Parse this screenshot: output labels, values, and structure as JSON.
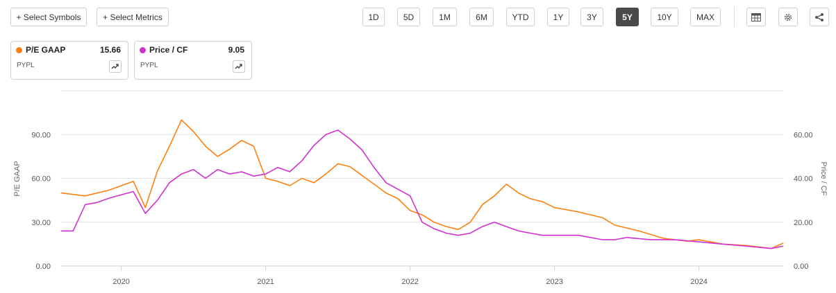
{
  "toolbar": {
    "select_symbols": "+ Select Symbols",
    "select_metrics": "+ Select Metrics",
    "ranges": [
      "1D",
      "5D",
      "1M",
      "6M",
      "YTD",
      "1Y",
      "3Y",
      "5Y",
      "10Y",
      "MAX"
    ],
    "selected_range": "5Y",
    "icons": [
      "table-icon",
      "gear-icon",
      "share-icon"
    ]
  },
  "cards": [
    {
      "metric": "P/E GAAP",
      "value": "15.66",
      "ticker": "PYPL",
      "color": "#ff7f0e"
    },
    {
      "metric": "Price / CF",
      "value": "9.05",
      "ticker": "PYPL",
      "color": "#d12fd1"
    }
  ],
  "chart_data": {
    "type": "line",
    "xlabel": "",
    "x_ticks": [
      "2020",
      "2021",
      "2022",
      "2023",
      "2024"
    ],
    "xlim": [
      "2019-08",
      "2024-08"
    ],
    "ylabel_left": "P/E GAAP",
    "ylabel_right": "Price / CF",
    "y_left_ticks": [
      "0.00",
      "30.00",
      "60.00",
      "90.00"
    ],
    "y_left_range": [
      0,
      120
    ],
    "y_right_ticks": [
      "0.00",
      "20.00",
      "40.00",
      "60.00"
    ],
    "y_right_range": [
      0,
      80
    ],
    "grid": true,
    "series": [
      {
        "name": "P/E GAAP",
        "axis": "left",
        "color": "#ff7f0e",
        "x": [
          "2019-08",
          "2019-10",
          "2019-12",
          "2020-02",
          "2020-03",
          "2020-04",
          "2020-05",
          "2020-06",
          "2020-07",
          "2020-08",
          "2020-09",
          "2020-10",
          "2020-11",
          "2020-12",
          "2021-01",
          "2021-02",
          "2021-03",
          "2021-04",
          "2021-05",
          "2021-06",
          "2021-07",
          "2021-08",
          "2021-09",
          "2021-10",
          "2021-11",
          "2021-12",
          "2022-01",
          "2022-02",
          "2022-03",
          "2022-04",
          "2022-05",
          "2022-06",
          "2022-07",
          "2022-08",
          "2022-09",
          "2022-10",
          "2022-11",
          "2022-12",
          "2023-01",
          "2023-03",
          "2023-05",
          "2023-06",
          "2023-08",
          "2023-10",
          "2023-12",
          "2024-01",
          "2024-03",
          "2024-05",
          "2024-07",
          "2024-08"
        ],
        "values": [
          50,
          48,
          52,
          58,
          40,
          65,
          82,
          100,
          92,
          82,
          75,
          80,
          86,
          82,
          60,
          58,
          55,
          60,
          57,
          63,
          70,
          68,
          62,
          56,
          50,
          46,
          38,
          35,
          30,
          27,
          25,
          30,
          42,
          48,
          56,
          50,
          46,
          44,
          40,
          37,
          33,
          28,
          24,
          19,
          17,
          18,
          15,
          14,
          12,
          15.66
        ]
      },
      {
        "name": "Price / CF",
        "axis": "right",
        "color": "#d12fd1",
        "x": [
          "2019-08",
          "2019-09",
          "2019-10",
          "2019-11",
          "2019-12",
          "2020-02",
          "2020-03",
          "2020-04",
          "2020-05",
          "2020-06",
          "2020-07",
          "2020-08",
          "2020-09",
          "2020-10",
          "2020-11",
          "2020-12",
          "2021-01",
          "2021-02",
          "2021-03",
          "2021-04",
          "2021-05",
          "2021-06",
          "2021-07",
          "2021-08",
          "2021-09",
          "2021-10",
          "2021-11",
          "2021-12",
          "2022-01",
          "2022-02",
          "2022-03",
          "2022-04",
          "2022-05",
          "2022-06",
          "2022-07",
          "2022-08",
          "2022-09",
          "2022-10",
          "2022-11",
          "2022-12",
          "2023-01",
          "2023-03",
          "2023-05",
          "2023-06",
          "2023-07",
          "2023-09",
          "2023-11",
          "2024-01",
          "2024-03",
          "2024-05",
          "2024-07",
          "2024-08"
        ],
        "values": [
          16,
          16,
          28,
          29,
          31,
          34,
          24,
          30,
          38,
          42,
          44,
          40,
          44,
          42,
          43,
          41,
          42,
          45,
          43,
          48,
          55,
          60,
          62,
          58,
          53,
          45,
          38,
          35,
          32,
          20,
          17,
          15,
          14,
          15,
          18,
          20,
          18,
          16,
          15,
          14,
          14,
          14,
          12,
          12,
          13,
          12,
          12,
          11,
          10,
          9,
          8,
          9.05
        ]
      }
    ]
  }
}
